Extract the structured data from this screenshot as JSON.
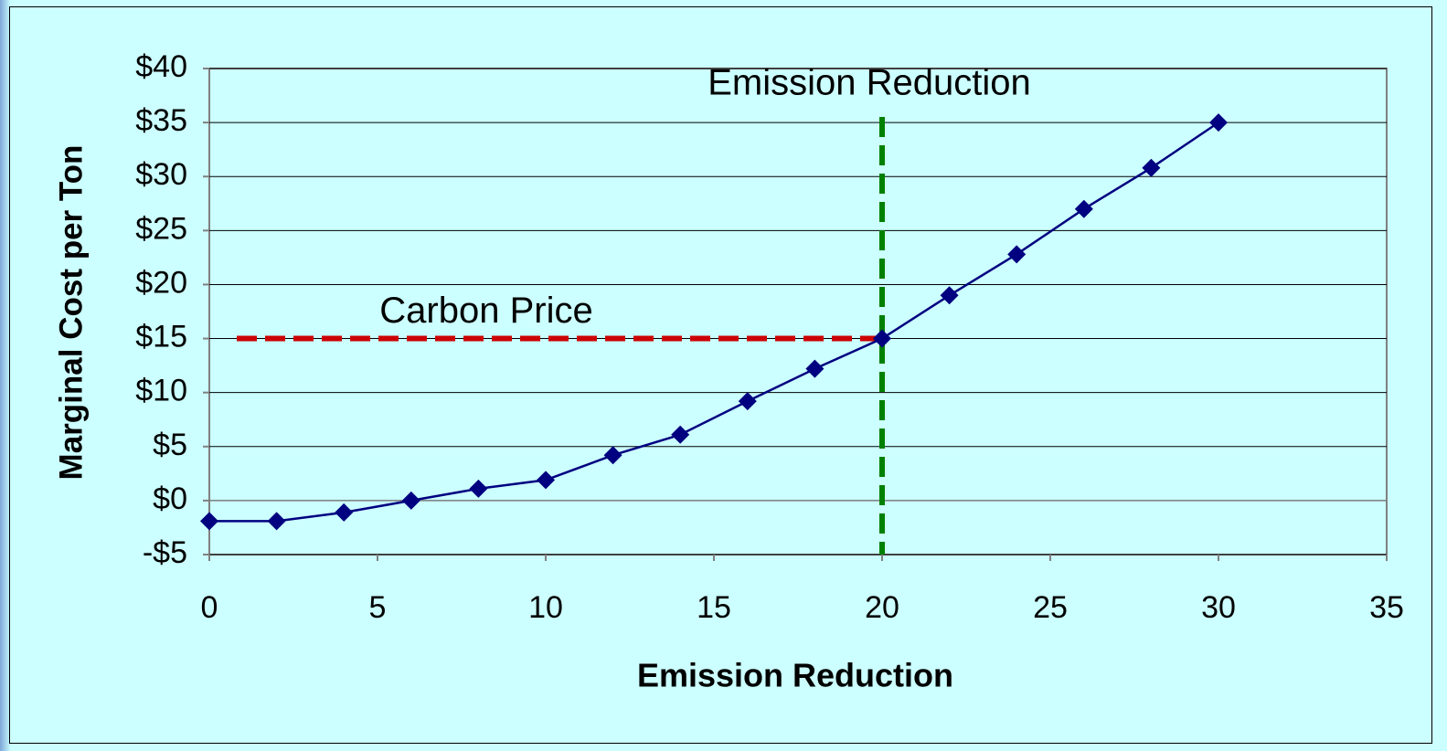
{
  "chart_data": {
    "type": "line",
    "x_label": "Emission Reduction",
    "y_label": "Marginal Cost per Ton",
    "x": [
      0,
      2,
      4,
      6,
      8,
      10,
      12,
      14,
      16,
      18,
      20,
      22,
      24,
      26,
      28,
      30
    ],
    "values": [
      -1.9,
      -1.9,
      -1.1,
      0,
      1.1,
      1.9,
      4.2,
      6.1,
      9.2,
      12.2,
      15,
      19,
      22.8,
      27,
      30.8,
      35
    ],
    "color": "#000080",
    "xlim": [
      0,
      35
    ],
    "xticks": [
      0,
      5,
      10,
      15,
      20,
      25,
      30,
      35
    ],
    "ylim": [
      -5,
      40
    ],
    "yticks": [
      {
        "value": -5,
        "label": "-$5"
      },
      {
        "value": 0,
        "label": "$0"
      },
      {
        "value": 5,
        "label": "$5"
      },
      {
        "value": 10,
        "label": "$10"
      },
      {
        "value": 15,
        "label": "$15"
      },
      {
        "value": 20,
        "label": "$20"
      },
      {
        "value": 25,
        "label": "$25"
      },
      {
        "value": 30,
        "label": "$30"
      },
      {
        "value": 35,
        "label": "$35"
      },
      {
        "value": 40,
        "label": "$40"
      }
    ],
    "grid": true,
    "reference_lines": [
      {
        "axis": "y",
        "value": 15,
        "label": "Carbon Price",
        "color": "#cc0000"
      },
      {
        "axis": "x",
        "value": 20,
        "label": "Emission Reduction",
        "color": "#008000"
      }
    ]
  }
}
